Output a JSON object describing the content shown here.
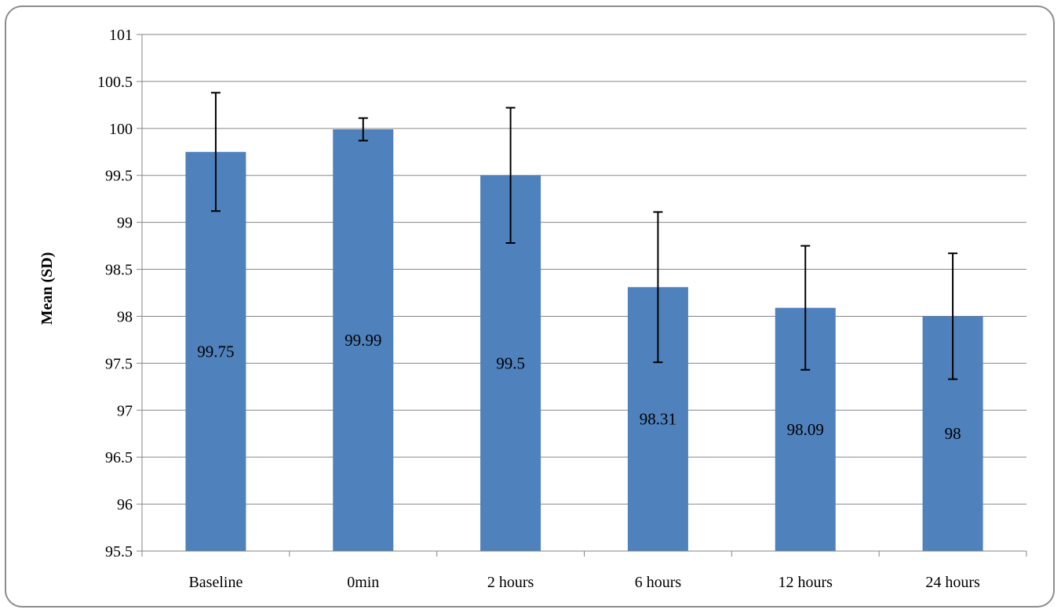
{
  "chart_data": {
    "type": "bar",
    "title": "",
    "xlabel": "",
    "ylabel": "Mean (SD)",
    "categories": [
      "Baseline",
      "0min",
      "2 hours",
      "6 hours",
      "12 hours",
      "24 hours"
    ],
    "values": [
      99.75,
      99.99,
      99.5,
      98.31,
      98.09,
      98
    ],
    "value_labels": [
      "99.75",
      "99.99",
      "99.5",
      "98.31",
      "98.09",
      "98"
    ],
    "error_bars": {
      "upper": [
        100.38,
        100.11,
        100.22,
        99.11,
        98.75,
        98.67
      ],
      "lower": [
        99.12,
        99.87,
        98.78,
        97.51,
        97.43,
        97.33
      ]
    },
    "ylim": [
      95.5,
      101
    ],
    "y_ticks": [
      95.5,
      96,
      96.5,
      97,
      97.5,
      98,
      98.5,
      99,
      99.5,
      100,
      100.5,
      101
    ],
    "y_tick_labels": [
      "95.5",
      "96",
      "96.5",
      "97",
      "97.5",
      "98",
      "98.5",
      "99",
      "99.5",
      "100",
      "100.5",
      "101"
    ],
    "grid": true,
    "legend": "none",
    "bar_color": "#4f81bd",
    "grid_color": "#868686"
  }
}
